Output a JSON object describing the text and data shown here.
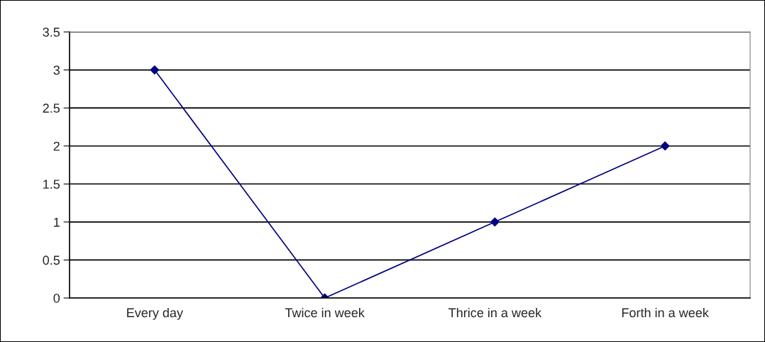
{
  "chart_data": {
    "type": "line",
    "categories": [
      "Every day",
      "Twice in week",
      "Thrice in a week",
      "Forth in a week"
    ],
    "series": [
      {
        "color": "#000080",
        "values": [
          3,
          0,
          1,
          2
        ]
      }
    ],
    "ylim": [
      0,
      3.5
    ],
    "yticks": [
      0,
      0.5,
      1,
      1.5,
      2,
      2.5,
      3,
      3.5
    ],
    "grid": "y",
    "marker": "diamond",
    "line_style": "solid"
  }
}
